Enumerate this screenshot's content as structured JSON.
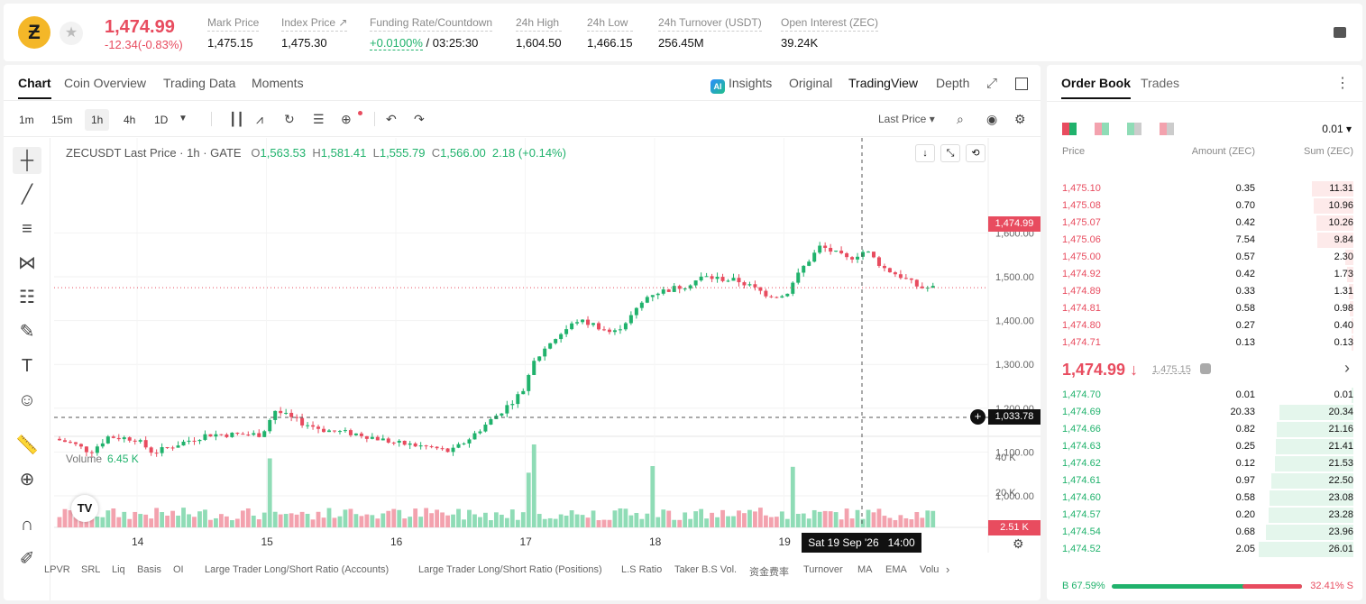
{
  "header": {
    "last_price": "1,474.99",
    "change": "-12.34(-0.83%)",
    "stats": [
      {
        "label": "Mark Price",
        "value": "1,475.15"
      },
      {
        "label": "Index Price ↗",
        "value": "1,475.30"
      },
      {
        "label": "Funding Rate/Countdown",
        "value_green": "+0.0100%",
        "value": "/ 03:25:30"
      },
      {
        "label": "24h High",
        "value": "1,604.50"
      },
      {
        "label": "24h Low",
        "value": "1,466.15"
      },
      {
        "label": "24h Turnover (USDT)",
        "value": "256.45M"
      },
      {
        "label": "Open Interest (ZEC)",
        "value": "39.24K"
      }
    ]
  },
  "chart_tabs": [
    "Chart",
    "Coin Overview",
    "Trading Data",
    "Moments"
  ],
  "chart_views": [
    "Insights",
    "Original",
    "TradingView",
    "Depth"
  ],
  "timeframes": [
    "1m",
    "15m",
    "1h",
    "4h",
    "1D"
  ],
  "price_source": "Last Price ▾",
  "ohlc": {
    "symbol": "ZECUSDT Last Price · 1h · GATE",
    "o_label": "O",
    "o": "1,563.53",
    "h_label": "H",
    "h": "1,581.41",
    "l_label": "L",
    "l": "1,555.79",
    "c_label": "C",
    "c": "1,566.00",
    "chg": "2.18 (+0.14%)"
  },
  "volume_label": "Volume",
  "volume_value": "6.45 K",
  "current_price_tag": "1,474.99",
  "crosshair_price_tag": "1,033.78",
  "volume_tag": "2.51 K",
  "crosshair_time": "Sat 19 Sep '26   14:00",
  "indicators": [
    "LPVR",
    "SRL",
    "Liq",
    "Basis",
    "OI",
    "Large Trader Long/Short Ratio (Accounts)",
    "Large Trader Long/Short Ratio (Positions)",
    "L.S Ratio",
    "Taker B.S Vol.",
    "资金费率",
    "Turnover",
    "MA",
    "EMA",
    "Volu"
  ],
  "order_book": {
    "tabs": [
      "Order Book",
      "Trades"
    ],
    "precision": "0.01 ▾",
    "headers": [
      "Price",
      "Amount (ZEC)",
      "Sum (ZEC)"
    ],
    "asks": [
      [
        "1,475.10",
        "0.35",
        "11.31"
      ],
      [
        "1,475.08",
        "0.70",
        "10.96"
      ],
      [
        "1,475.07",
        "0.42",
        "10.26"
      ],
      [
        "1,475.06",
        "7.54",
        "9.84"
      ],
      [
        "1,475.00",
        "0.57",
        "2.30"
      ],
      [
        "1,474.92",
        "0.42",
        "1.73"
      ],
      [
        "1,474.89",
        "0.33",
        "1.31"
      ],
      [
        "1,474.81",
        "0.58",
        "0.98"
      ],
      [
        "1,474.80",
        "0.27",
        "0.40"
      ],
      [
        "1,474.71",
        "0.13",
        "0.13"
      ]
    ],
    "mid_price": "1,474.99 ↓",
    "mark_price": "1,475.15",
    "bids": [
      [
        "1,474.70",
        "0.01",
        "0.01"
      ],
      [
        "1,474.69",
        "20.33",
        "20.34"
      ],
      [
        "1,474.66",
        "0.82",
        "21.16"
      ],
      [
        "1,474.63",
        "0.25",
        "21.41"
      ],
      [
        "1,474.62",
        "0.12",
        "21.53"
      ],
      [
        "1,474.61",
        "0.97",
        "22.50"
      ],
      [
        "1,474.60",
        "0.58",
        "23.08"
      ],
      [
        "1,474.57",
        "0.20",
        "23.28"
      ],
      [
        "1,474.54",
        "0.68",
        "23.96"
      ],
      [
        "1,474.52",
        "2.05",
        "26.01"
      ]
    ],
    "buy_ratio": "B 67.59%",
    "sell_ratio": "32.41% S",
    "buy_pct": 67.59
  },
  "colors": {
    "up": "#20b26c",
    "down": "#e84c5f",
    "up_vol": "#8fdcb6",
    "down_vol": "#f3a2ae"
  },
  "chart_data": {
    "type": "candlestick",
    "ylim": [
      1000,
      1600
    ],
    "yticks": [
      1000,
      1100,
      1200,
      1300,
      1400,
      1500,
      1600
    ],
    "xticks": [
      "14",
      "15",
      "16",
      "17",
      "18",
      "19"
    ],
    "vticks": [
      "20 K",
      "40 K"
    ],
    "y_tick_labels": [
      "1,000.00",
      "1,100.00",
      "1,200.00",
      "1,300.00",
      "1,400.00",
      "1,500.00",
      "1,600.00"
    ]
  }
}
